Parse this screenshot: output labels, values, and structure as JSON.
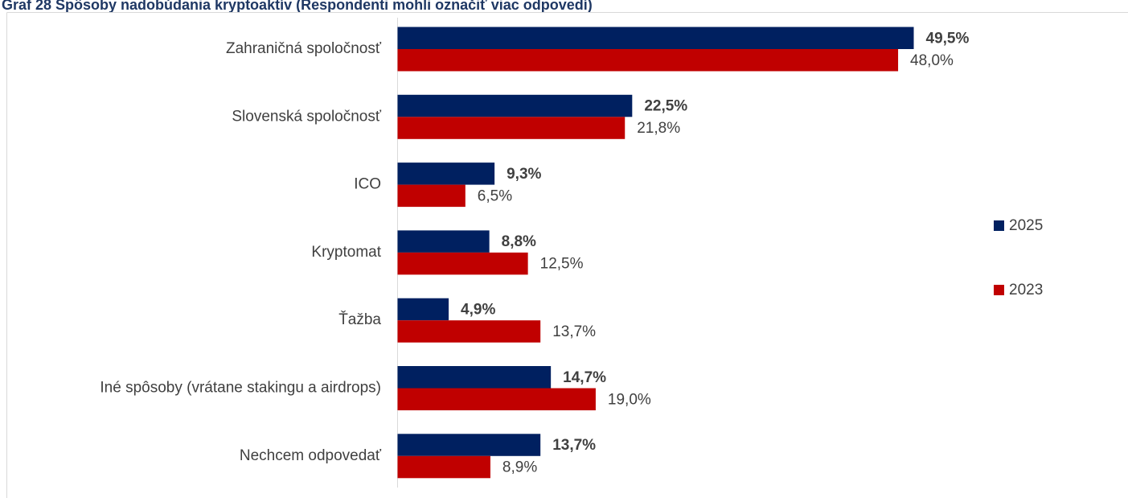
{
  "chart_data": {
    "type": "bar",
    "orientation": "horizontal",
    "title": "Graf 28 Spôsoby nadobúdania kryptoaktív (Respondenti mohli označiť viac odpovedí)",
    "categories": [
      "Zahraničná spoločnosť",
      "Slovenská spoločnosť",
      "ICO",
      "Kryptomat",
      "Ťažba",
      "Iné spôsoby (vrátane stakingu a airdrops)",
      "Nechcem odpovedať"
    ],
    "series": [
      {
        "name": "2025",
        "color": "#002060",
        "values": [
          49.5,
          22.5,
          9.3,
          8.8,
          4.9,
          14.7,
          13.7
        ],
        "value_labels": [
          "49,5%",
          "22,5%",
          "9,3%",
          "8,8%",
          "4,9%",
          "14,7%",
          "13,7%"
        ]
      },
      {
        "name": "2023",
        "color": "#c00000",
        "values": [
          48.0,
          21.8,
          6.5,
          12.5,
          13.7,
          19.0,
          8.9
        ],
        "value_labels": [
          "48,0%",
          "21,8%",
          "6,5%",
          "12,5%",
          "13,7%",
          "19,0%",
          "8,9%"
        ]
      }
    ],
    "legend": "right"
  }
}
